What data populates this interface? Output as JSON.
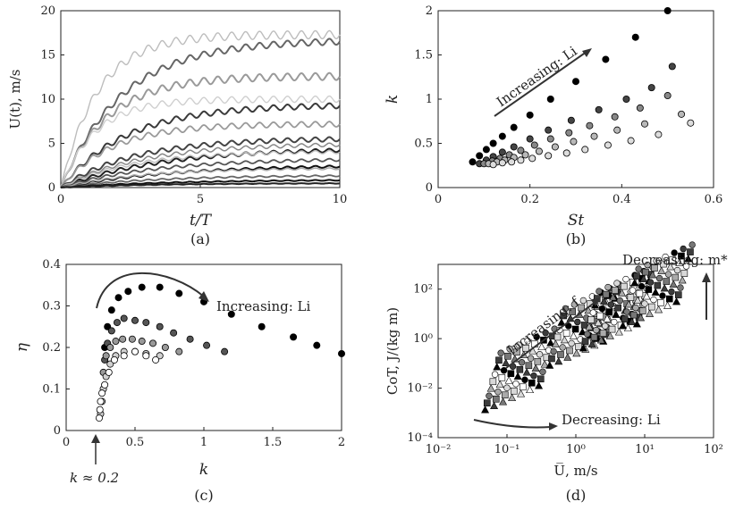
{
  "chart_data": [
    {
      "id": "a",
      "type": "line",
      "panel_label": "(a)",
      "xlabel": "t/T",
      "ylabel": "U(t), m/s",
      "xlim": [
        0,
        10
      ],
      "ylim": [
        0,
        20
      ],
      "xticks": [
        "0",
        "5",
        "10"
      ],
      "yticks": [
        "0",
        "5",
        "10",
        "15",
        "20"
      ],
      "grid": false,
      "series": [
        {
          "final": 17.3,
          "amp": 0.45,
          "rate": 0.75,
          "color": "#bdbdbd",
          "width": 1.4
        },
        {
          "final": 16.7,
          "amp": 0.35,
          "rate": 0.45,
          "color": "#666666",
          "width": 2.0
        },
        {
          "final": 12.6,
          "amp": 0.4,
          "rate": 0.6,
          "color": "#9a9a9a",
          "width": 2.0
        },
        {
          "final": 10.0,
          "amp": 0.35,
          "rate": 0.8,
          "color": "#cfcfcf",
          "width": 1.4
        },
        {
          "final": 9.4,
          "amp": 0.3,
          "rate": 0.42,
          "color": "#3a3a3a",
          "width": 2.0
        },
        {
          "final": 7.2,
          "amp": 0.3,
          "rate": 0.55,
          "color": "#9a9a9a",
          "width": 1.8
        },
        {
          "final": 5.6,
          "amp": 0.25,
          "rate": 0.38,
          "color": "#444444",
          "width": 2.0
        },
        {
          "final": 5.0,
          "amp": 0.2,
          "rate": 0.35,
          "color": "#888888",
          "width": 1.5
        },
        {
          "final": 4.5,
          "amp": 0.2,
          "rate": 0.28,
          "color": "#222222",
          "width": 2.0
        },
        {
          "final": 4.1,
          "amp": 0.18,
          "rate": 0.4,
          "color": "#bdbdbd",
          "width": 1.4
        },
        {
          "final": 3.3,
          "amp": 0.15,
          "rate": 0.3,
          "color": "#555555",
          "width": 1.8
        },
        {
          "final": 2.6,
          "amp": 0.12,
          "rate": 0.25,
          "color": "#111111",
          "width": 2.0
        },
        {
          "final": 2.2,
          "amp": 0.1,
          "rate": 0.35,
          "color": "#aaaaaa",
          "width": 1.5
        },
        {
          "final": 1.4,
          "amp": 0.08,
          "rate": 0.3,
          "color": "#666666",
          "width": 1.8
        },
        {
          "final": 0.9,
          "amp": 0.05,
          "rate": 0.25,
          "color": "#111111",
          "width": 2.0
        },
        {
          "final": 0.5,
          "amp": 0.03,
          "rate": 0.3,
          "color": "#222222",
          "width": 2.0
        }
      ]
    },
    {
      "id": "b",
      "type": "scatter",
      "panel_label": "(b)",
      "xlabel": "St",
      "ylabel": "k",
      "xlim": [
        0,
        0.6
      ],
      "ylim": [
        0,
        2
      ],
      "xticks": [
        "0",
        "0.2",
        "0.4",
        "0.6"
      ],
      "yticks": [
        "0",
        "0.5",
        "1",
        "1.5",
        "2"
      ],
      "grid": false,
      "annotation": "Increasing: Li",
      "series": [
        {
          "name": "",
          "color": "#000000",
          "x": [
            0.075,
            0.09,
            0.105,
            0.12,
            0.14,
            0.165,
            0.2,
            0.245,
            0.3,
            0.365,
            0.43,
            0.5
          ],
          "y": [
            0.29,
            0.36,
            0.43,
            0.5,
            0.58,
            0.68,
            0.82,
            1.0,
            1.2,
            1.45,
            1.7,
            2.0
          ]
        },
        {
          "name": "",
          "color": "#444444",
          "x": [
            0.09,
            0.105,
            0.12,
            0.14,
            0.165,
            0.2,
            0.24,
            0.29,
            0.35,
            0.41,
            0.465,
            0.51
          ],
          "y": [
            0.27,
            0.31,
            0.35,
            0.4,
            0.46,
            0.55,
            0.65,
            0.76,
            0.88,
            1.0,
            1.13,
            1.37
          ]
        },
        {
          "name": "",
          "color": "#888888",
          "x": [
            0.1,
            0.118,
            0.135,
            0.155,
            0.18,
            0.21,
            0.245,
            0.285,
            0.33,
            0.385,
            0.44,
            0.5
          ],
          "y": [
            0.27,
            0.3,
            0.33,
            0.37,
            0.42,
            0.48,
            0.55,
            0.62,
            0.7,
            0.8,
            0.9,
            1.04
          ]
        },
        {
          "name": "",
          "color": "#b8b8b8",
          "x": [
            0.11,
            0.128,
            0.145,
            0.165,
            0.19,
            0.22,
            0.255,
            0.295,
            0.34,
            0.39,
            0.45,
            0.53
          ],
          "y": [
            0.27,
            0.29,
            0.31,
            0.34,
            0.37,
            0.41,
            0.46,
            0.52,
            0.58,
            0.65,
            0.72,
            0.83
          ]
        },
        {
          "name": "",
          "color": "#dddddd",
          "x": [
            0.12,
            0.14,
            0.16,
            0.18,
            0.205,
            0.24,
            0.28,
            0.32,
            0.37,
            0.42,
            0.48,
            0.55
          ],
          "y": [
            0.26,
            0.28,
            0.29,
            0.31,
            0.33,
            0.36,
            0.39,
            0.43,
            0.48,
            0.53,
            0.6,
            0.73
          ]
        }
      ]
    },
    {
      "id": "c",
      "type": "scatter",
      "panel_label": "(c)",
      "xlabel": "k",
      "ylabel": "η",
      "xlim": [
        0,
        2
      ],
      "ylim": [
        0,
        0.4
      ],
      "xticks": [
        "0",
        "0.5",
        "1",
        "1.5",
        "2"
      ],
      "yticks": [
        "0",
        "0.1",
        "0.2",
        "0.3",
        "0.4"
      ],
      "grid": false,
      "annotations": [
        "Increasing: Li",
        "k ≈ 0.2"
      ],
      "series": [
        {
          "name": "",
          "color": "#000000",
          "x": [
            0.28,
            0.3,
            0.33,
            0.38,
            0.45,
            0.55,
            0.68,
            0.82,
            1.0,
            1.2,
            1.42,
            1.65,
            1.82,
            2.0
          ],
          "y": [
            0.2,
            0.25,
            0.29,
            0.32,
            0.335,
            0.345,
            0.345,
            0.33,
            0.31,
            0.28,
            0.25,
            0.225,
            0.205,
            0.185
          ]
        },
        {
          "name": "",
          "color": "#555555",
          "x": [
            0.28,
            0.3,
            0.33,
            0.37,
            0.42,
            0.5,
            0.58,
            0.68,
            0.78,
            0.9,
            1.02,
            1.15
          ],
          "y": [
            0.17,
            0.21,
            0.24,
            0.26,
            0.27,
            0.265,
            0.26,
            0.25,
            0.235,
            0.22,
            0.205,
            0.19
          ]
        },
        {
          "name": "",
          "color": "#999999",
          "x": [
            0.27,
            0.29,
            0.32,
            0.36,
            0.41,
            0.48,
            0.55,
            0.63,
            0.72,
            0.82
          ],
          "y": [
            0.14,
            0.18,
            0.2,
            0.215,
            0.22,
            0.22,
            0.215,
            0.21,
            0.2,
            0.19
          ]
        },
        {
          "name": "",
          "color": "#d0d0d0",
          "x": [
            0.25,
            0.26,
            0.27,
            0.29,
            0.32,
            0.36,
            0.42,
            0.5,
            0.58,
            0.68
          ],
          "y": [
            0.04,
            0.07,
            0.1,
            0.13,
            0.16,
            0.18,
            0.19,
            0.19,
            0.185,
            0.18
          ]
        },
        {
          "name": "",
          "color": "#ffffff",
          "x": [
            0.24,
            0.245,
            0.25,
            0.26,
            0.28,
            0.31,
            0.35,
            0.42,
            0.5,
            0.58,
            0.65
          ],
          "y": [
            0.03,
            0.05,
            0.07,
            0.09,
            0.11,
            0.14,
            0.17,
            0.18,
            0.19,
            0.18,
            0.17
          ]
        }
      ]
    },
    {
      "id": "d",
      "type": "scatter",
      "panel_label": "(d)",
      "xlabel": "U̅, m/s",
      "ylabel": "CoT, J/(kg m)",
      "scale": "log",
      "xlim": [
        0.01,
        100
      ],
      "ylim": [
        0.0001,
        1000
      ],
      "xticks": [
        "10⁻²",
        "10⁻¹",
        "10⁰",
        "10¹",
        "10²"
      ],
      "yticks": [
        "10⁻⁴",
        "10⁻²",
        "10⁰",
        "10²"
      ],
      "grid": false,
      "annotations": [
        "Increasing: f",
        "Decreasing: m*",
        "Decreasing: Li"
      ],
      "clusters": [
        {
          "x": 0.15,
          "y": 0.008
        },
        {
          "x": 1.3,
          "y": 0.5
        },
        {
          "x": 4.0,
          "y": 2.5
        },
        {
          "x": 15.0,
          "y": 20.0
        }
      ]
    }
  ]
}
